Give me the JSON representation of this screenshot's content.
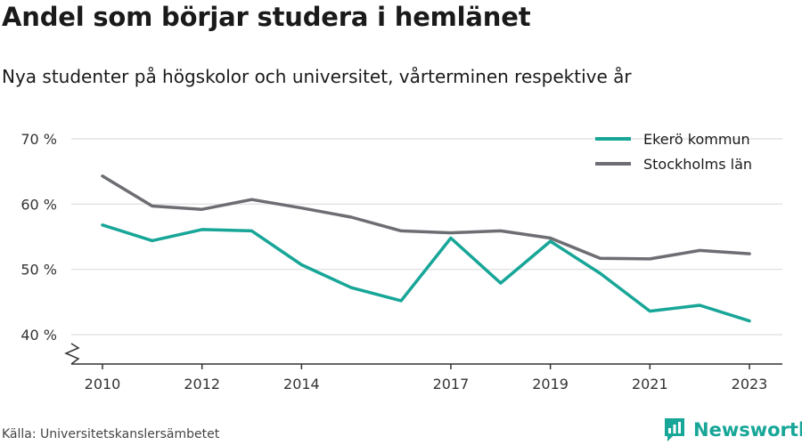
{
  "title": "Andel som börjar studera i hemlänet",
  "subtitle": "Nya studenter på högskolor och universitet, vårterminen respektive år",
  "source": "Källa: Universitetskanslersämbetet",
  "brand": "Newsworthy",
  "colors": {
    "ekero": "#17a697",
    "stockholm": "#6d6e73",
    "grid": "#dddddd",
    "axis": "#333333",
    "brand": "#17a697"
  },
  "chart_data": {
    "type": "line",
    "x": [
      2010,
      2011,
      2012,
      2013,
      2014,
      2015,
      2016,
      2017,
      2018,
      2019,
      2020,
      2021,
      2022,
      2023
    ],
    "x_tick_labels": [
      "2010",
      "2012",
      "2014",
      "2017",
      "2019",
      "2021",
      "2023"
    ],
    "y_tick_labels": [
      "70 %",
      "60 %",
      "50 %",
      "40 %"
    ],
    "ylim": [
      40,
      70
    ],
    "y_axis_break": true,
    "grid": true,
    "legend_position": "top-right",
    "series": [
      {
        "name": "Ekerö kommun",
        "color_key": "ekero",
        "values": [
          56.8,
          54.4,
          56.1,
          55.9,
          50.7,
          47.2,
          45.2,
          54.8,
          47.9,
          54.3,
          49.4,
          43.6,
          44.5,
          42.1
        ]
      },
      {
        "name": "Stockholms län",
        "color_key": "stockholm",
        "values": [
          64.3,
          59.7,
          59.2,
          60.7,
          59.4,
          58.0,
          55.9,
          55.6,
          55.9,
          54.8,
          51.7,
          51.6,
          52.9,
          52.4
        ]
      }
    ]
  }
}
